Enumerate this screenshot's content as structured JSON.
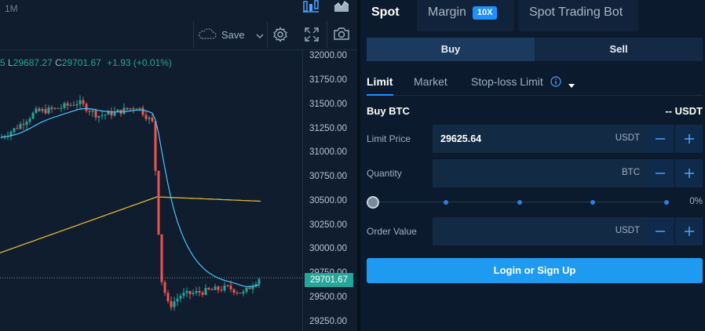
{
  "chart": {
    "timeframe": "1M",
    "save_label": "Save",
    "ohlc": {
      "low_label": "L",
      "low_value": "29687.27",
      "close_label": "C",
      "close_value": "29701.67",
      "change": "+1.93 (+0.01%)"
    },
    "last_price_tag": "29701.67",
    "colors": {
      "up": "#26a69a",
      "down": "#ef5350",
      "ma_fast": "#4fc3f7",
      "ma_slow": "#e0b534"
    }
  },
  "chart_data": {
    "type": "candlestick",
    "y_ticks": [
      "32000.00",
      "31750.00",
      "31500.00",
      "31250.00",
      "31000.00",
      "30750.00",
      "30500.00",
      "30250.00",
      "30000.00",
      "29750.00",
      "29500.00",
      "29250.00"
    ],
    "ylim": [
      29150,
      32060
    ],
    "last_price": 29701.67
  },
  "trade": {
    "tabs": [
      {
        "label": "Spot"
      },
      {
        "label": "Margin",
        "badge": "10X"
      },
      {
        "label": "Spot Trading Bot"
      }
    ],
    "buy_label": "Buy",
    "sell_label": "Sell",
    "order_types": [
      "Limit",
      "Market",
      "Stop-loss Limit"
    ],
    "buy_title": "Buy BTC",
    "balance": "-- USDT",
    "fields": [
      {
        "label": "Limit Price",
        "value": "29625.64",
        "unit": "USDT"
      },
      {
        "label": "Quantity",
        "value": "",
        "unit": "BTC"
      },
      {
        "label": "Order Value",
        "value": "",
        "unit": "USDT"
      }
    ],
    "slider_pct": "0%",
    "login_label": "Login or Sign Up"
  }
}
